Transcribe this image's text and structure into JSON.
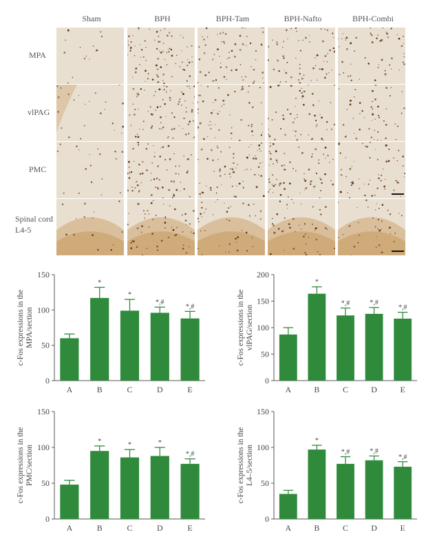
{
  "micrographs": {
    "columns": [
      "Sham",
      "BPH",
      "BPH-Tam",
      "BPH-Nafto",
      "BPH-Combi"
    ],
    "rows": [
      {
        "label_lines": [
          "MPA"
        ]
      },
      {
        "label_lines": [
          "vlPAG"
        ]
      },
      {
        "label_lines": [
          "PMC"
        ]
      },
      {
        "label_lines": [
          "Spinal cord",
          "L4-5"
        ]
      }
    ],
    "tissue_color": "#e9dfd0",
    "stain_color": "#c89a5e",
    "dot_color": "#5a2e12",
    "staining_density": [
      [
        0.15,
        0.95,
        0.75,
        0.7,
        0.6
      ],
      [
        0.25,
        0.9,
        0.6,
        0.65,
        0.55
      ],
      [
        0.2,
        0.85,
        0.75,
        0.8,
        0.65
      ],
      [
        0.15,
        0.6,
        0.45,
        0.5,
        0.4
      ]
    ]
  },
  "chart_data": [
    {
      "type": "bar",
      "categories": [
        "A",
        "B",
        "C",
        "D",
        "E"
      ],
      "values": [
        60,
        117,
        99,
        96,
        88
      ],
      "errors": [
        6,
        15,
        16,
        8,
        10
      ],
      "annotations": [
        "",
        "*",
        "*",
        "*,#",
        "*,#"
      ],
      "ylabel_lines": [
        "c-Fos expressions in the",
        "MPA/section"
      ],
      "ylim": [
        0,
        150
      ],
      "yticks": [
        0,
        50,
        100,
        150
      ],
      "bar_color": "#2f8a3c"
    },
    {
      "type": "bar",
      "categories": [
        "A",
        "B",
        "C",
        "D",
        "E"
      ],
      "values": [
        87,
        164,
        123,
        126,
        117
      ],
      "errors": [
        13,
        13,
        14,
        12,
        12
      ],
      "annotations": [
        "",
        "*",
        "*,#",
        "*,#",
        "*,#"
      ],
      "ylabel_lines": [
        "c-Fos expressions in the",
        "vlPAG/section"
      ],
      "ylim": [
        0,
        200
      ],
      "yticks": [
        0,
        50,
        100,
        150,
        200
      ],
      "bar_color": "#2f8a3c"
    },
    {
      "type": "bar",
      "categories": [
        "A",
        "B",
        "C",
        "D",
        "E"
      ],
      "values": [
        48,
        95,
        86,
        88,
        77
      ],
      "errors": [
        6,
        7,
        11,
        12,
        7
      ],
      "annotations": [
        "",
        "*",
        "*",
        "*",
        "*,#"
      ],
      "ylabel_lines": [
        "c-Fos expressions in the",
        "PMC/section"
      ],
      "ylim": [
        0,
        150
      ],
      "yticks": [
        0,
        50,
        100,
        150
      ],
      "bar_color": "#2f8a3c"
    },
    {
      "type": "bar",
      "categories": [
        "A",
        "B",
        "C",
        "D",
        "E"
      ],
      "values": [
        35,
        97,
        77,
        82,
        73
      ],
      "errors": [
        5,
        6,
        10,
        6,
        7
      ],
      "annotations": [
        "",
        "*",
        "*,#",
        "*,#",
        "*,#"
      ],
      "ylabel_lines": [
        "c-Fos expressions in the",
        "L4–5/section"
      ],
      "ylim": [
        0,
        150
      ],
      "yticks": [
        0,
        50,
        100,
        150
      ],
      "bar_color": "#2f8a3c"
    }
  ]
}
